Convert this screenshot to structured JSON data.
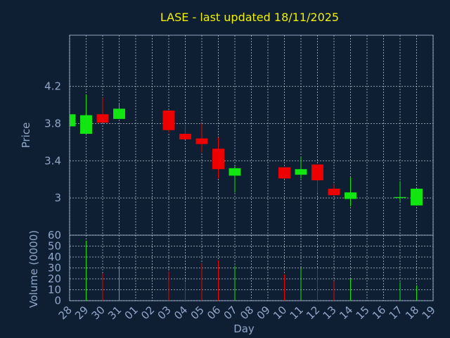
{
  "chart_data": {
    "type": "candlestick",
    "title": "LASE - last updated 18/11/2025",
    "xlabel": "Day",
    "price_axis": {
      "label": "Price",
      "ticks": [
        "4.2",
        "3.8",
        "3.4",
        "3"
      ],
      "tick_values": [
        4.2,
        3.8,
        3.4,
        3.0
      ],
      "range": [
        2.6,
        4.75
      ]
    },
    "volume_axis": {
      "label": "Volume (0000)",
      "ticks": [
        "60",
        "50",
        "40",
        "30",
        "20",
        "10",
        "0"
      ],
      "tick_values": [
        60,
        50,
        40,
        30,
        20,
        10,
        0
      ],
      "range": [
        0,
        60
      ]
    },
    "days": [
      "28",
      "29",
      "30",
      "31",
      "01",
      "02",
      "03",
      "04",
      "05",
      "06",
      "07",
      "08",
      "09",
      "10",
      "11",
      "12",
      "13",
      "14",
      "15",
      "16",
      "17",
      "18",
      "19"
    ],
    "candles": [
      {
        "day": "28",
        "open": 3.77,
        "close": 3.9,
        "high": 3.9,
        "low": 3.77
      },
      {
        "day": "29",
        "open": 3.69,
        "close": 3.89,
        "high": 4.11,
        "low": 3.69
      },
      {
        "day": "30",
        "open": 3.9,
        "close": 3.81,
        "high": 4.08,
        "low": 3.81
      },
      {
        "day": "31",
        "open": 3.85,
        "close": 3.96,
        "high": 4.02,
        "low": 3.85
      },
      {
        "day": "03",
        "open": 3.94,
        "close": 3.73,
        "high": 3.94,
        "low": 3.7
      },
      {
        "day": "04",
        "open": 3.69,
        "close": 3.63,
        "high": 3.79,
        "low": 3.63
      },
      {
        "day": "05",
        "open": 3.64,
        "close": 3.58,
        "high": 3.8,
        "low": 3.49
      },
      {
        "day": "06",
        "open": 3.53,
        "close": 3.31,
        "high": 3.65,
        "low": 3.21
      },
      {
        "day": "07",
        "open": 3.24,
        "close": 3.32,
        "high": 3.34,
        "low": 3.06
      },
      {
        "day": "10",
        "open": 3.33,
        "close": 3.21,
        "high": 3.33,
        "low": 3.21
      },
      {
        "day": "11",
        "open": 3.25,
        "close": 3.31,
        "high": 3.44,
        "low": 3.21
      },
      {
        "day": "12",
        "open": 3.36,
        "close": 3.19,
        "high": 3.36,
        "low": 3.05
      },
      {
        "day": "13",
        "open": 3.1,
        "close": 3.03,
        "high": 3.14,
        "low": 3.03
      },
      {
        "day": "14",
        "open": 2.99,
        "close": 3.06,
        "high": 3.22,
        "low": 2.91
      },
      {
        "day": "17",
        "open": 3.0,
        "close": 3.01,
        "high": 3.18,
        "low": 2.96
      },
      {
        "day": "18",
        "open": 2.92,
        "close": 3.1,
        "high": 3.1,
        "low": 2.92
      }
    ],
    "volume": [
      {
        "day": "29",
        "value": 55,
        "color": "up"
      },
      {
        "day": "30",
        "value": 25,
        "color": "down"
      },
      {
        "day": "31",
        "value": 31,
        "color": "up"
      },
      {
        "day": "03",
        "value": 27,
        "color": "down"
      },
      {
        "day": "04",
        "value": 17,
        "color": "down"
      },
      {
        "day": "05",
        "value": 34,
        "color": "down"
      },
      {
        "day": "06",
        "value": 37,
        "color": "down"
      },
      {
        "day": "07",
        "value": 32,
        "color": "up"
      },
      {
        "day": "10",
        "value": 24,
        "color": "down"
      },
      {
        "day": "11",
        "value": 30,
        "color": "up"
      },
      {
        "day": "12",
        "value": 30,
        "color": "down"
      },
      {
        "day": "13",
        "value": 18,
        "color": "down"
      },
      {
        "day": "14",
        "value": 20,
        "color": "up"
      },
      {
        "day": "17",
        "value": 17,
        "color": "up"
      },
      {
        "day": "18",
        "value": 14,
        "color": "up"
      }
    ],
    "colors": {
      "background": "#0f1f33",
      "up": "#11e611",
      "down": "#ee0000",
      "title": "#f0f000",
      "text": "#8fa7c8"
    },
    "grid": true
  }
}
